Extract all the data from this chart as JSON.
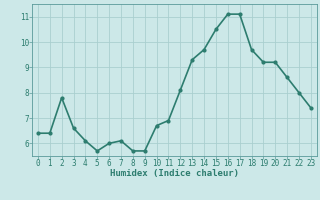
{
  "x": [
    0,
    1,
    2,
    3,
    4,
    5,
    6,
    7,
    8,
    9,
    10,
    11,
    12,
    13,
    14,
    15,
    16,
    17,
    18,
    19,
    20,
    21,
    22,
    23
  ],
  "y": [
    6.4,
    6.4,
    7.8,
    6.6,
    6.1,
    5.7,
    6.0,
    6.1,
    5.7,
    5.7,
    6.7,
    6.9,
    8.1,
    9.3,
    9.7,
    10.5,
    11.1,
    11.1,
    9.7,
    9.2,
    9.2,
    8.6,
    8.0,
    7.4
  ],
  "line_color": "#2d7d6f",
  "marker": "o",
  "markersize": 2.0,
  "linewidth": 1.2,
  "bg_color": "#cce8e8",
  "grid_color": "#aacfcf",
  "xlabel": "Humidex (Indice chaleur)",
  "xlabel_fontsize": 6.5,
  "tick_fontsize": 5.5,
  "ylim": [
    5.5,
    11.5
  ],
  "yticks": [
    6,
    7,
    8,
    9,
    10,
    11
  ],
  "xticks": [
    0,
    1,
    2,
    3,
    4,
    5,
    6,
    7,
    8,
    9,
    10,
    11,
    12,
    13,
    14,
    15,
    16,
    17,
    18,
    19,
    20,
    21,
    22,
    23
  ],
  "text_color": "#2d7d6f",
  "axis_color": "#5a9a9a"
}
